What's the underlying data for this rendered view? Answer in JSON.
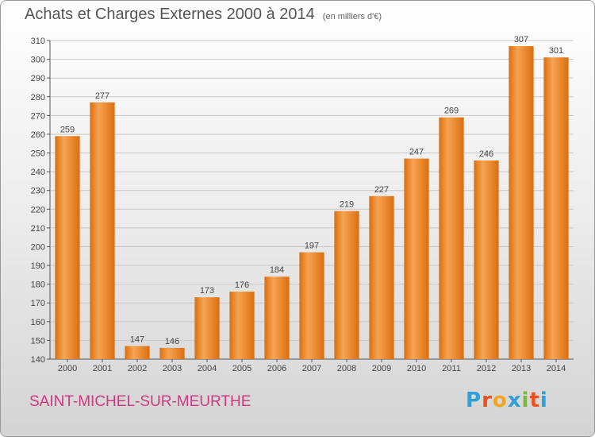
{
  "header": {
    "title": "Achats et Charges Externes 2000 à 2014",
    "unit_note": "(en milliers d'€)"
  },
  "footer": {
    "commune": "SAINT-MICHEL-SUR-MEURTHE",
    "brand_letters": [
      "P",
      "r",
      "o",
      "x",
      "i",
      "t",
      "i"
    ],
    "brand_colors": [
      "#2f9fd8",
      "#e8541f",
      "#f2a422",
      "#2f9fd8",
      "#7ab83a",
      "#e8541f",
      "#2f9fd8"
    ]
  },
  "chart_data": {
    "type": "bar",
    "title": "Achats et Charges Externes 2000 à 2014",
    "subtitle": "(en milliers d'€)",
    "xlabel": "",
    "ylabel": "",
    "categories": [
      "2000",
      "2001",
      "2002",
      "2003",
      "2004",
      "2005",
      "2006",
      "2007",
      "2008",
      "2009",
      "2010",
      "2011",
      "2012",
      "2013",
      "2014"
    ],
    "values": [
      259,
      277,
      147,
      146,
      173,
      176,
      184,
      197,
      219,
      227,
      247,
      269,
      246,
      307,
      301
    ],
    "ylim": [
      140,
      310
    ],
    "yticks": [
      140,
      150,
      160,
      170,
      180,
      190,
      200,
      210,
      220,
      230,
      240,
      250,
      260,
      270,
      280,
      290,
      300,
      310
    ],
    "grid": true,
    "legend": "none",
    "bar_color_light": "#f7a452",
    "bar_color_dark": "#d96f10"
  }
}
